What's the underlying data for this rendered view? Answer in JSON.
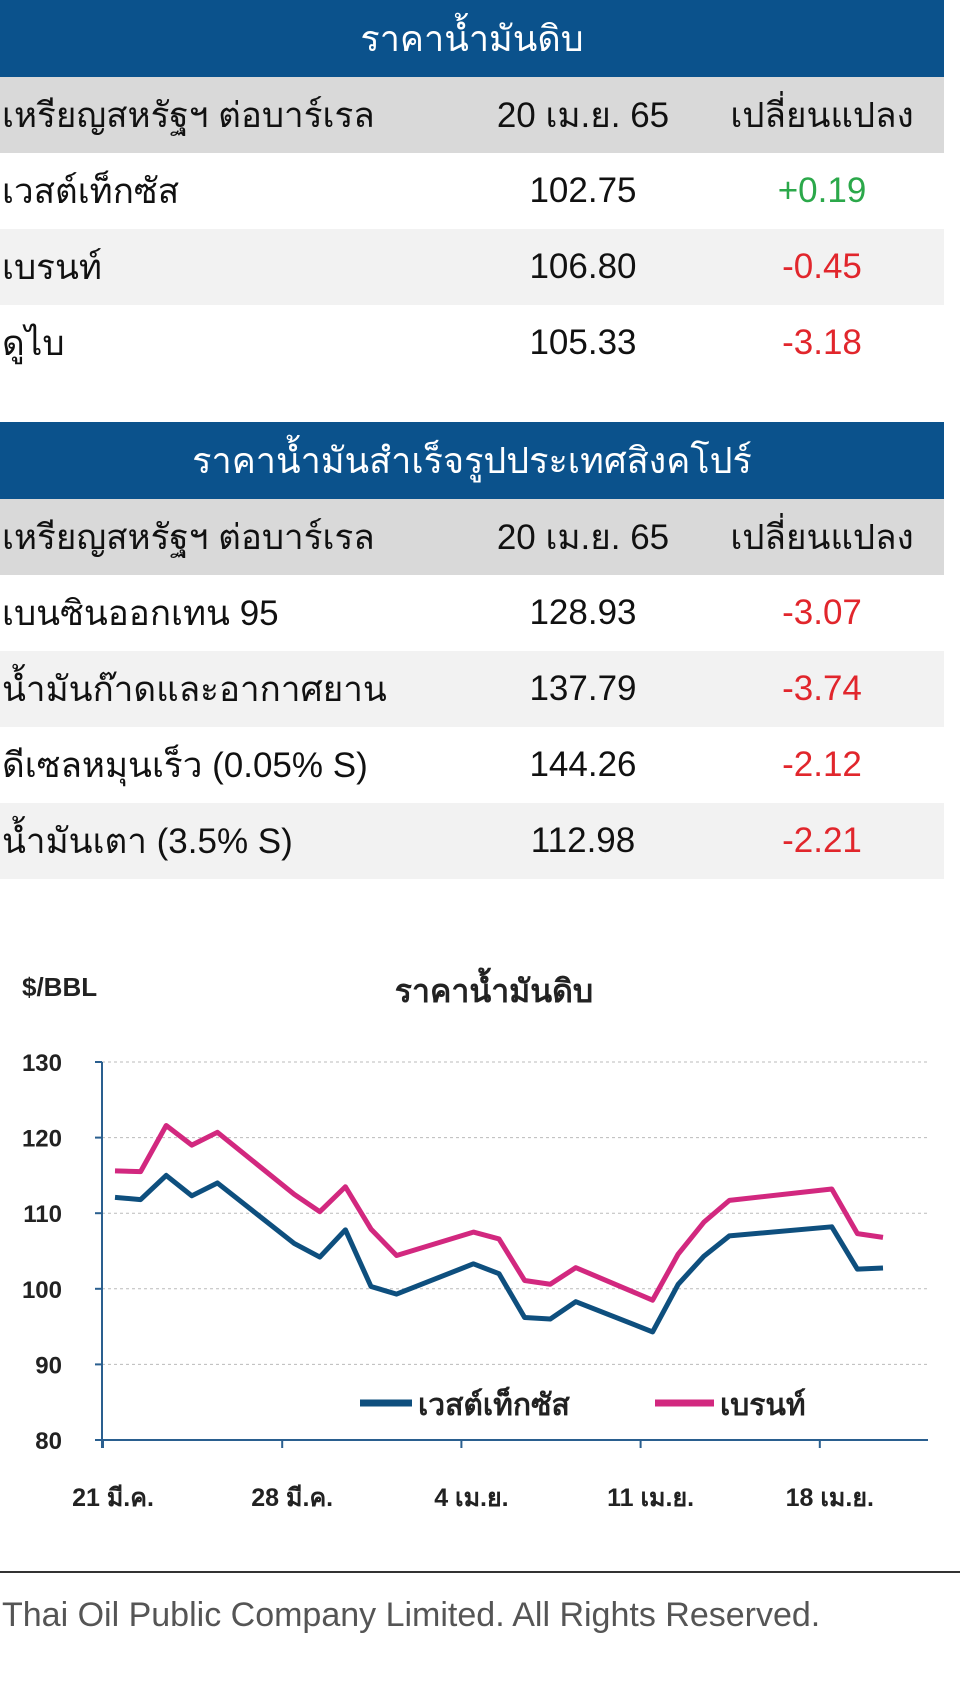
{
  "crude": {
    "title": "ราคาน้ำมันดิบ",
    "header": [
      "เหรียญสหรัฐฯ ต่อบาร์เรล",
      "20 เม.ย. 65",
      "เปลี่ยนแปลง"
    ],
    "rows": [
      {
        "name": "เวสต์เท็กซัส",
        "price": "102.75",
        "change": "+0.19"
      },
      {
        "name": "เบรนท์",
        "price": "106.80",
        "change": "-0.45"
      },
      {
        "name": "ดูไบ",
        "price": "105.33",
        "change": "-3.18"
      }
    ]
  },
  "refined": {
    "title": "ราคาน้ำมันสำเร็จรูปประเทศสิงคโปร์",
    "header": [
      "เหรียญสหรัฐฯ ต่อบาร์เรล",
      "20 เม.ย. 65",
      "เปลี่ยนแปลง"
    ],
    "rows": [
      {
        "name": "เบนซินออกเทน 95",
        "price": "128.93",
        "change": "-3.07"
      },
      {
        "name": "น้ำมันก๊าดและอากาศยาน",
        "price": "137.79",
        "change": "-3.74"
      },
      {
        "name": "ดีเซลหมุนเร็ว (0.05% S)",
        "price": "144.26",
        "change": "-2.12"
      },
      {
        "name": "น้ำมันเตา (3.5% S)",
        "price": "112.98",
        "change": "-2.21"
      }
    ]
  },
  "colors": {
    "header": "#0b528c",
    "positive": "#2ba84a",
    "negative": "#e1262c",
    "wti": "#0e4f7e",
    "brent": "#d2287f"
  },
  "chart_data": {
    "type": "line",
    "title": "ราคาน้ำมันดิบ",
    "ylabel": "$/BBL",
    "ylim": [
      80,
      130
    ],
    "yticks": [
      80,
      90,
      100,
      110,
      120,
      130
    ],
    "xtick_labels": [
      {
        "date": "2022-03-21",
        "label": "21 มี.ค."
      },
      {
        "date": "2022-03-28",
        "label": "28 มี.ค."
      },
      {
        "date": "2022-04-04",
        "label": "4 เม.ย."
      },
      {
        "date": "2022-04-11",
        "label": "11 เม.ย."
      },
      {
        "date": "2022-04-18",
        "label": "18 เม.ย."
      }
    ],
    "grid": "horizontal dashed",
    "legend": "bottom-center",
    "x": [
      "2022-03-21",
      "2022-03-22",
      "2022-03-23",
      "2022-03-24",
      "2022-03-25",
      "2022-03-28",
      "2022-03-29",
      "2022-03-30",
      "2022-03-31",
      "2022-04-01",
      "2022-04-04",
      "2022-04-05",
      "2022-04-06",
      "2022-04-07",
      "2022-04-08",
      "2022-04-11",
      "2022-04-12",
      "2022-04-13",
      "2022-04-14",
      "2022-04-18",
      "2022-04-19",
      "2022-04-20"
    ],
    "series": [
      {
        "name": "เวสต์เท็กซัส",
        "values": [
          112.1,
          111.8,
          115.0,
          112.3,
          114.0,
          106.0,
          104.2,
          107.8,
          100.3,
          99.3,
          103.3,
          102.0,
          96.2,
          96.0,
          98.3,
          94.3,
          100.6,
          104.3,
          107.0,
          108.2,
          102.6,
          102.75
        ]
      },
      {
        "name": "เบรนท์",
        "values": [
          115.6,
          115.5,
          121.6,
          119.0,
          120.7,
          112.5,
          110.2,
          113.5,
          107.9,
          104.4,
          107.5,
          106.6,
          101.1,
          100.6,
          102.8,
          98.5,
          104.6,
          108.8,
          111.7,
          113.2,
          107.3,
          106.8
        ]
      }
    ]
  },
  "footer": "Thai Oil Public Company Limited. All Rights Reserved."
}
